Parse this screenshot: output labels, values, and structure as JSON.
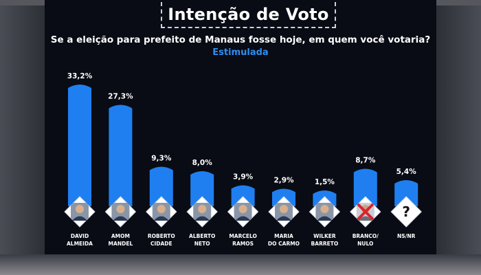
{
  "header": {
    "title": "Intenção de Voto",
    "subtitle": "Se a eleição para prefeito de Manaus fosse hoje, em quem você votaria?",
    "tag": "Estimulada"
  },
  "colors": {
    "bar": "#1f7ff0",
    "background": "#090c14",
    "accent": "#2f8cf2"
  },
  "chart_data": {
    "type": "bar",
    "title": "Intenção de Voto",
    "categories": [
      "DAVID ALMEIDA",
      "AMOM MANDEL",
      "ROBERTO CIDADE",
      "ALBERTO NETO",
      "MARCELO RAMOS",
      "MARIA DO CARMO",
      "WILKER BARRETO",
      "BRANCO/ NULO",
      "NS/NR"
    ],
    "category_lines": [
      [
        "DAVID",
        "ALMEIDA"
      ],
      [
        "AMOM",
        "MANDEL"
      ],
      [
        "ROBERTO",
        "CIDADE"
      ],
      [
        "ALBERTO",
        "NETO"
      ],
      [
        "MARCELO",
        "RAMOS"
      ],
      [
        "MARIA",
        "DO CARMO"
      ],
      [
        "WILKER",
        "BARRETO"
      ],
      [
        "BRANCO/",
        "NULO"
      ],
      [
        "NS/NR"
      ]
    ],
    "values": [
      33.2,
      27.3,
      9.3,
      8.0,
      3.9,
      2.9,
      1.5,
      8.7,
      5.4
    ],
    "value_labels": [
      "33,2%",
      "27,3%",
      "9,3%",
      "8,0%",
      "3,9%",
      "2,9%",
      "1,5%",
      "8,7%",
      "5,4%"
    ],
    "avatars": [
      "person-icon",
      "person-icon",
      "person-icon",
      "person-icon",
      "person-icon",
      "person-icon",
      "person-icon",
      "blank-null-x-icon",
      "question-mark-icon"
    ],
    "unit": "%",
    "grid": false,
    "legend": "none"
  }
}
